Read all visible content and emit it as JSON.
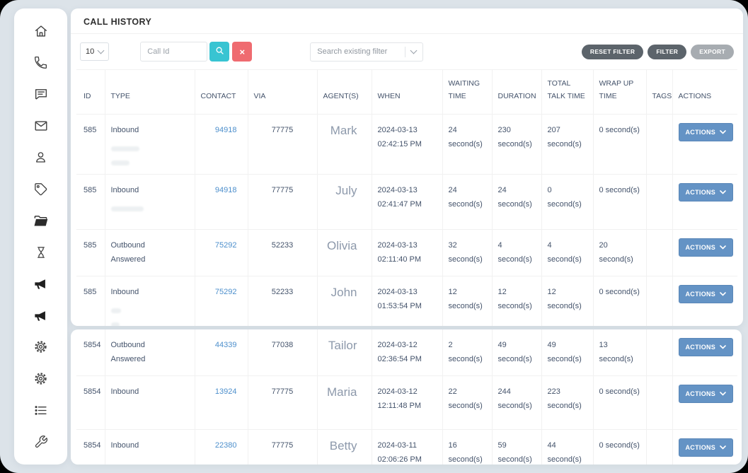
{
  "page": {
    "title": "CALL HISTORY"
  },
  "toolbar": {
    "page_size": "10",
    "call_id_placeholder": "Call Id",
    "search_icon": "magnifier",
    "clear_icon": "×",
    "filter_search_placeholder": "Search existing filter",
    "reset_filter_label": "RESET FILTER",
    "filter_label": "FILTER",
    "export_label": "EXPORT"
  },
  "sidebar": {
    "items": [
      "home",
      "phone",
      "chat",
      "mail",
      "user",
      "tag",
      "folder",
      "hourglass",
      "megaphone",
      "megaphone",
      "gear",
      "gear",
      "list",
      "wrench"
    ]
  },
  "table": {
    "columns": [
      "ID",
      "TYPE",
      "CONTACT",
      "VIA",
      "AGENT(S)",
      "WHEN",
      "WAITING TIME",
      "DURATION",
      "TOTAL TALK TIME",
      "WRAP UP TIME",
      "TAGS",
      "ACTIONS"
    ],
    "actions_label": "ACTIONS",
    "rows": [
      {
        "id": "585",
        "type": "Inbound",
        "type2": "",
        "contact": "94918",
        "via": "77775",
        "agent": "Mark",
        "when": "2024-03-13 02:42:15 PM",
        "waiting": "24 second(s)",
        "duration": "230 second(s)",
        "total_talk": "207 second(s)",
        "wrap_up": "0 second(s)",
        "tags": "",
        "redacted_lines": 2
      },
      {
        "id": "585",
        "type": "Inbound",
        "type2": "",
        "contact": "94918",
        "via": "77775",
        "agent": "July",
        "when": "2024-03-13 02:41:47 PM",
        "waiting": "24 second(s)",
        "duration": "24 second(s)",
        "total_talk": "0 second(s)",
        "wrap_up": "0 second(s)",
        "tags": "",
        "redacted_lines": 1
      },
      {
        "id": "585",
        "type": "Outbound",
        "type2": "Answered",
        "contact": "75292",
        "via": "52233",
        "agent": "Olivia",
        "when": "2024-03-13 02:11:40 PM",
        "waiting": "32 second(s)",
        "duration": "4 second(s)",
        "total_talk": "4 second(s)",
        "wrap_up": "20 second(s)",
        "tags": "",
        "redacted_lines": 0
      },
      {
        "id": "585",
        "type": "Inbound",
        "type2": "",
        "contact": "75292",
        "via": "52233",
        "agent": "John",
        "when": "2024-03-13 01:53:54 PM",
        "waiting": "12 second(s)",
        "duration": "12 second(s)",
        "total_talk": "12 second(s)",
        "wrap_up": "0 second(s)",
        "tags": "",
        "redacted_lines": 3
      },
      {
        "id": "5854",
        "type": "Outbound",
        "type2": "Answered",
        "contact": "44339",
        "via": "77038",
        "agent": "Tailor",
        "when": "2024-03-12 02:36:54 PM",
        "waiting": "2 second(s)",
        "duration": "49 second(s)",
        "total_talk": "49 second(s)",
        "wrap_up": "13 second(s)",
        "tags": "",
        "redacted_lines": 0
      },
      {
        "id": "5854",
        "type": "Inbound",
        "type2": "",
        "contact": "13924",
        "via": "77775",
        "agent": "Maria",
        "when": "2024-03-12 12:11:48 PM",
        "waiting": "22 second(s)",
        "duration": "244 second(s)",
        "total_talk": "223 second(s)",
        "wrap_up": "0 second(s)",
        "tags": "",
        "redacted_lines": 0
      },
      {
        "id": "5854",
        "type": "Inbound",
        "type2": "",
        "contact": "22380",
        "via": "77775",
        "agent": "Betty",
        "when": "2024-03-11 02:06:26 PM",
        "waiting": "16 second(s)",
        "duration": "59 second(s)",
        "total_talk": "44 second(s)",
        "wrap_up": "0 second(s)",
        "tags": "",
        "redacted_lines": 0
      }
    ],
    "top_card_row_count": 4
  },
  "colors": {
    "page_background": "#dce3e9",
    "accent_teal": "#38c4d2",
    "danger_red": "#ef6b70",
    "action_button_blue": "#6493c5",
    "dark_pill": "#5c646b",
    "light_pill": "#a7acb1",
    "link_blue": "#4d8fcc",
    "table_text": "#44536b",
    "agent_text": "#8d99ab"
  }
}
